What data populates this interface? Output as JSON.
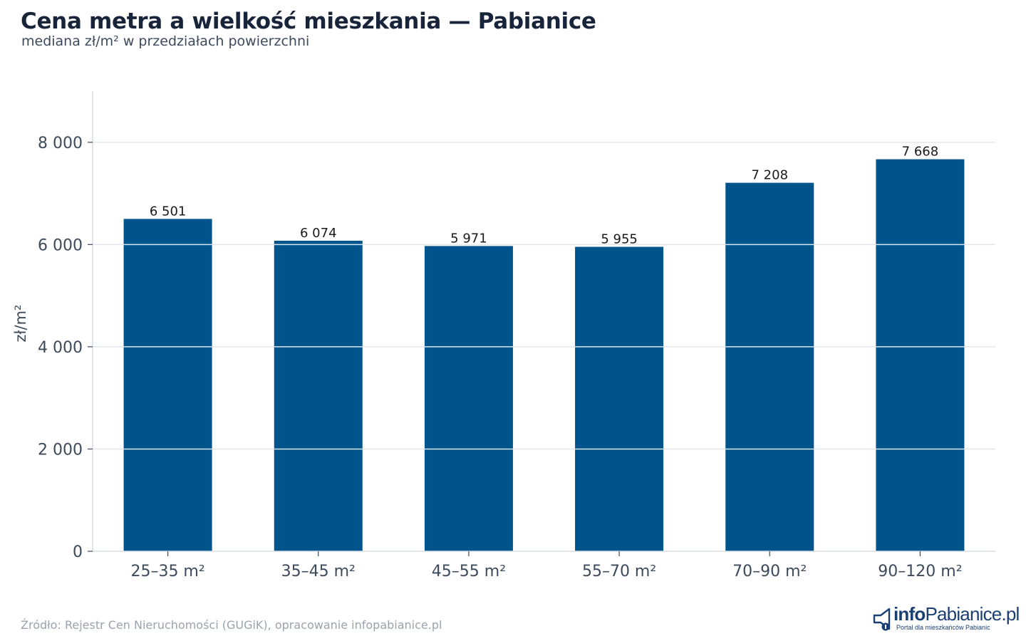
{
  "header": {
    "title": "Cena metra a wielkość mieszkania — Pabianice",
    "subtitle": "mediana zł/m² w przedziałach powierzchni"
  },
  "footer": {
    "source": "Źródło: Rejestr Cen Nieruchomości (GUGiK), opracowanie infopabianice.pl"
  },
  "logo": {
    "prefix": "info",
    "name": "Pabianice.pl",
    "tagline": "Portal dla mieszkańców Pabianic",
    "icon": "megaphone-icon"
  },
  "chart_data": {
    "type": "bar",
    "categories": [
      "25–35 m²",
      "35–45 m²",
      "45–55 m²",
      "55–70 m²",
      "70–90 m²",
      "90–120 m²"
    ],
    "values": [
      6501,
      6074,
      5971,
      5955,
      7208,
      7668
    ],
    "value_labels": [
      "6 501",
      "6 074",
      "5 971",
      "5 955",
      "7 208",
      "7 668"
    ],
    "ylabel": "zł/m²",
    "ylim": [
      0,
      9000
    ],
    "yticks": [
      0,
      2000,
      4000,
      6000,
      8000
    ],
    "ytick_labels": [
      "0",
      "2 000",
      "4 000",
      "6 000",
      "8 000"
    ],
    "grid": true,
    "colors": {
      "bar": "#00548c",
      "grid": "#e3e6ea",
      "axis": "#d9dde2",
      "text": "#3d4a5c"
    }
  }
}
